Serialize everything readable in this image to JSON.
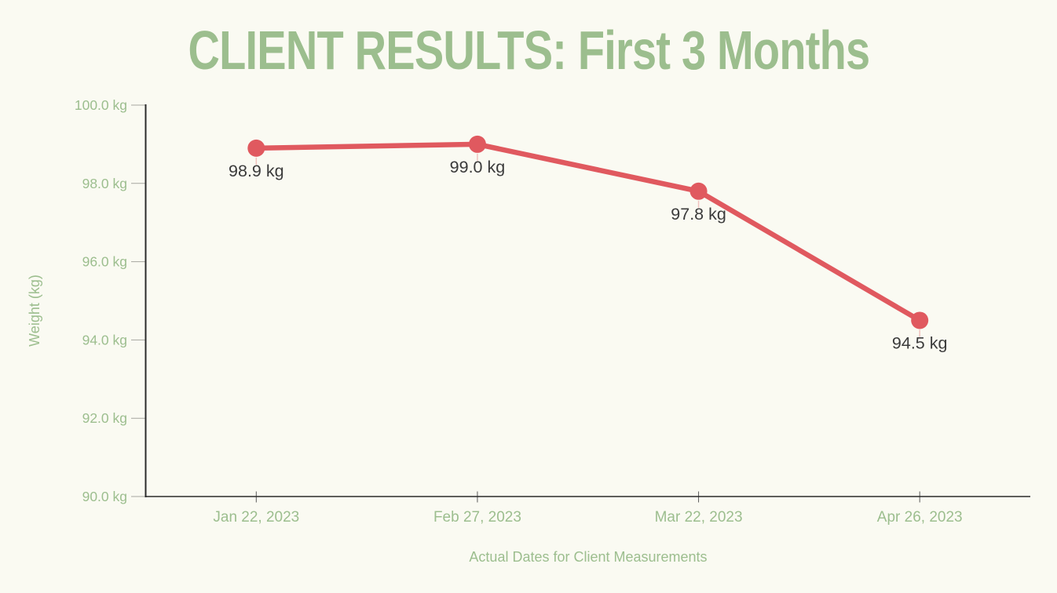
{
  "page": {
    "background": "#FAFAF2"
  },
  "chart_data": {
    "type": "line",
    "title": "CLIENT RESULTS: First 3 Months",
    "xlabel": "Actual Dates for Client Measurements",
    "ylabel": "Weight (kg)",
    "categories": [
      "Jan 22, 2023",
      "Feb 27, 2023",
      "Mar 22, 2023",
      "Apr 26, 2023"
    ],
    "values": [
      98.9,
      99.0,
      97.8,
      94.5
    ],
    "point_labels": [
      "98.9 kg",
      "99.0 kg",
      "97.8 kg",
      "94.5 kg"
    ],
    "ylim": [
      90,
      100
    ],
    "yticks": [
      100,
      98,
      96,
      94,
      92,
      90
    ],
    "ytick_labels": [
      "100.0 kg",
      "98.0 kg",
      "96.0 kg",
      "94.0 kg",
      "92.0 kg",
      "90.0 kg"
    ],
    "grid": false,
    "legend": "none",
    "colors": {
      "line": "#E0595F",
      "marker": "#E0595F",
      "title_green": "#9CBE8E",
      "tick_label_green": "#9CBE8E",
      "data_label": "#3B3B3B",
      "axis": "#2B2B2B",
      "y_tick_mark": "#A6A6A0",
      "x_tick_mark": "#5A5A5A",
      "background": "#FAFAF2"
    }
  }
}
